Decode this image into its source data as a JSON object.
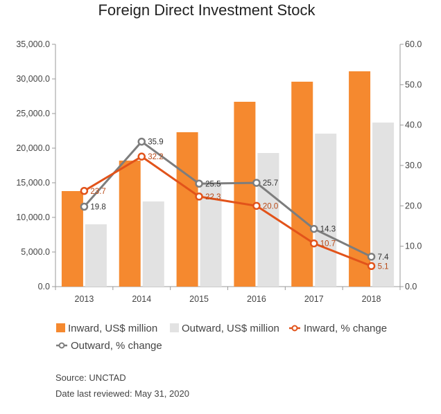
{
  "chart_data": {
    "type": "bar",
    "title": "Foreign Direct Investment Stock",
    "categories": [
      "2013",
      "2014",
      "2015",
      "2016",
      "2017",
      "2018"
    ],
    "y_left": {
      "ylim": [
        0,
        35000
      ],
      "ticks": [
        "0.0",
        "5,000.0",
        "10,000.0",
        "15,000.0",
        "20,000.0",
        "25,000.0",
        "30,000.0",
        "35,000.0"
      ]
    },
    "y_right": {
      "ylim": [
        0,
        60
      ],
      "ticks": [
        "0.0",
        "10.0",
        "20.0",
        "30.0",
        "40.0",
        "50.0",
        "60.0"
      ]
    },
    "series": [
      {
        "name": "Inward, US$ million",
        "kind": "bar",
        "axis": "left",
        "color": "#f5892f",
        "values": [
          13800,
          18200,
          22300,
          26700,
          29600,
          31100
        ]
      },
      {
        "name": "Outward, US$ million",
        "kind": "bar",
        "axis": "left",
        "color": "#e2e2e2",
        "values": [
          9000,
          12300,
          14800,
          19300,
          22100,
          23700
        ]
      },
      {
        "name": "Inward, % change",
        "kind": "line",
        "axis": "right",
        "color": "#e2531a",
        "values": [
          23.7,
          32.2,
          22.3,
          20.0,
          10.7,
          5.1
        ],
        "labels": [
          "23.7",
          "32.2",
          "22.3",
          "20.0",
          "10.7",
          "5.1"
        ]
      },
      {
        "name": "Outward, % change",
        "kind": "line",
        "axis": "right",
        "color": "#7d7d7d",
        "values": [
          19.8,
          35.9,
          25.5,
          25.7,
          14.3,
          7.4
        ],
        "labels": [
          "19.8",
          "35.9",
          "25.5",
          "25.7",
          "14.3",
          "7.4"
        ]
      }
    ],
    "grid": false,
    "legend_position": "bottom"
  },
  "footer": {
    "source": "Source: UNCTAD",
    "reviewed": "Date last reviewed: May 31, 2020"
  }
}
